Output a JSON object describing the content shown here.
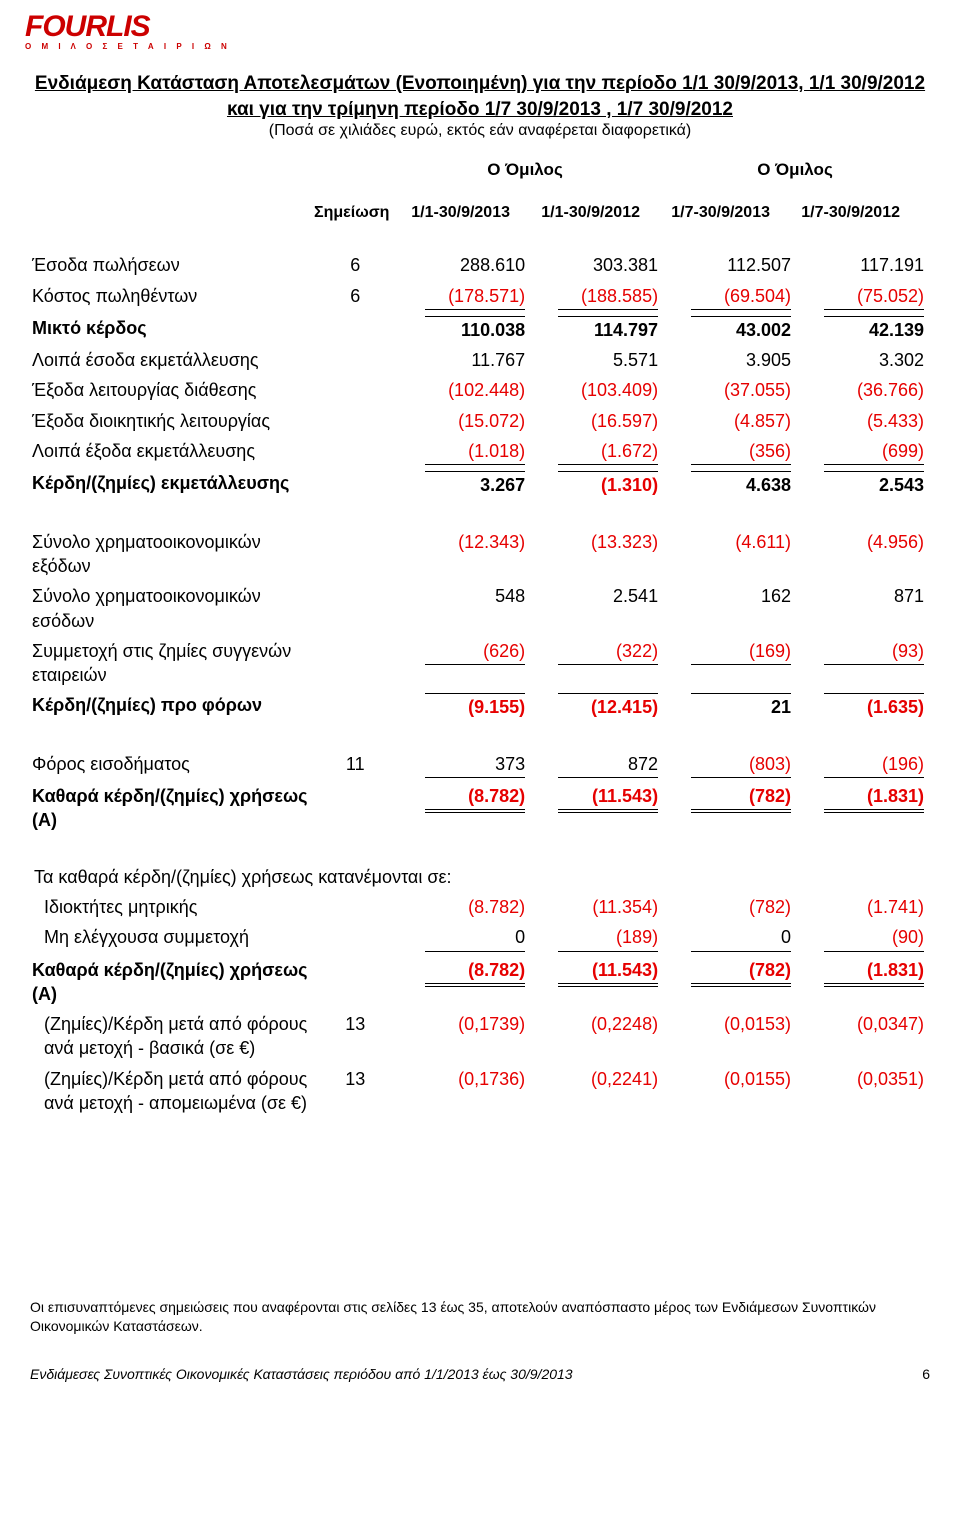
{
  "logo": {
    "main": "FOURLIS",
    "sub": "Ο Μ Ι Λ Ο Σ   Ε Τ Α Ι Ρ Ι Ω Ν"
  },
  "title": {
    "line1": "Ενδιάμεση Κατάσταση Αποτελεσμάτων (Ενοποιημένη) για την περίοδο 1/1 30/9/2013, 1/1 30/9/2012  και για την τρίμηνη περίοδο 1/7 30/9/2013 , 1/7 30/9/2012",
    "sub": "(Ποσά σε χιλιάδες ευρώ, εκτός εάν αναφέρεται διαφορετικά)"
  },
  "columns": {
    "note_header": "Σημείωση",
    "group_a": "Ο Όμιλος",
    "group_b": "Ο Όμιλος",
    "p1": "1/1-30/9/2013",
    "p2": "1/1-30/9/2012",
    "p3": "1/7-30/9/2013",
    "p4": "1/7-30/9/2012"
  },
  "rows": [
    {
      "label": "Έσοδα πωλήσεων",
      "note": "6",
      "vals": [
        "288.610",
        "303.381",
        "112.507",
        "117.191"
      ],
      "neg": [
        false,
        false,
        false,
        false
      ]
    },
    {
      "label": "Κόστος πωληθέντων",
      "note": "6",
      "vals": [
        "(178.571)",
        "(188.585)",
        "(69.504)",
        "(75.052)"
      ],
      "neg": [
        true,
        true,
        true,
        true
      ],
      "underline": true
    },
    {
      "label": "Μικτό κέρδος",
      "bold": true,
      "vals": [
        "110.038",
        "114.797",
        "43.002",
        "42.139"
      ],
      "neg": [
        false,
        false,
        false,
        false
      ],
      "topline": true
    },
    {
      "label": "Λοιπά έσοδα εκμετάλλευσης",
      "vals": [
        "11.767",
        "5.571",
        "3.905",
        "3.302"
      ],
      "neg": [
        false,
        false,
        false,
        false
      ]
    },
    {
      "label": "Έξοδα λειτουργίας διάθεσης",
      "vals": [
        "(102.448)",
        "(103.409)",
        "(37.055)",
        "(36.766)"
      ],
      "neg": [
        true,
        true,
        true,
        true
      ]
    },
    {
      "label": "Έξοδα διοικητικής λειτουργίας",
      "vals": [
        "(15.072)",
        "(16.597)",
        "(4.857)",
        "(5.433)"
      ],
      "neg": [
        true,
        true,
        true,
        true
      ]
    },
    {
      "label": "Λοιπά έξοδα εκμετάλλευσης",
      "vals": [
        "(1.018)",
        "(1.672)",
        "(356)",
        "(699)"
      ],
      "neg": [
        true,
        true,
        true,
        true
      ],
      "underline": true
    },
    {
      "label": "Κέρδη/(ζημίες) εκμετάλλευσης",
      "bold": true,
      "vals": [
        "3.267",
        "(1.310)",
        "4.638",
        "2.543"
      ],
      "neg": [
        false,
        true,
        false,
        false
      ],
      "topline": true
    }
  ],
  "rows2": [
    {
      "label": "Σύνολο χρηματοοικονομικών εξόδων",
      "vals": [
        "(12.343)",
        "(13.323)",
        "(4.611)",
        "(4.956)"
      ],
      "neg": [
        true,
        true,
        true,
        true
      ]
    },
    {
      "label": "Σύνολο χρηματοοικονομικών εσόδων",
      "vals": [
        "548",
        "2.541",
        "162",
        "871"
      ],
      "neg": [
        false,
        false,
        false,
        false
      ]
    },
    {
      "label": "Συμμετοχή στις ζημίες συγγενών εταιρειών",
      "vals": [
        "(626)",
        "(322)",
        "(169)",
        "(93)"
      ],
      "neg": [
        true,
        true,
        true,
        true
      ],
      "underline": true
    },
    {
      "label": "Κέρδη/(ζημίες) προ φόρων",
      "bold": true,
      "vals": [
        "(9.155)",
        "(12.415)",
        "21",
        "(1.635)"
      ],
      "neg": [
        true,
        true,
        false,
        true
      ],
      "topline": true
    }
  ],
  "rows3": [
    {
      "label": "Φόρος εισοδήματος",
      "note": "11",
      "vals": [
        "373",
        "872",
        "(803)",
        "(196)"
      ],
      "neg": [
        false,
        false,
        true,
        true
      ],
      "underline": true
    },
    {
      "label": "Καθαρά κέρδη/(ζημίες) χρήσεως (Α)",
      "bold": true,
      "vals": [
        "(8.782)",
        "(11.543)",
        "(782)",
        "(1.831)"
      ],
      "neg": [
        true,
        true,
        true,
        true
      ],
      "dbl": true
    }
  ],
  "alloc_header": "Τα καθαρά κέρδη/(ζημίες) χρήσεως κατανέμονται σε:",
  "rows4": [
    {
      "label": "Ιδιοκτήτες μητρικής",
      "indent": true,
      "vals": [
        "(8.782)",
        "(11.354)",
        "(782)",
        "(1.741)"
      ],
      "neg": [
        true,
        true,
        true,
        true
      ]
    },
    {
      "label": "Μη ελέγχουσα συμμετοχή",
      "indent": true,
      "vals": [
        "0",
        "(189)",
        "0",
        "(90)"
      ],
      "neg": [
        false,
        true,
        false,
        true
      ],
      "underline": true
    },
    {
      "label": "Καθαρά κέρδη/(ζημίες) χρήσεως (Α)",
      "bold": true,
      "vals": [
        "(8.782)",
        "(11.543)",
        "(782)",
        "(1.831)"
      ],
      "neg": [
        true,
        true,
        true,
        true
      ],
      "dbl": true
    },
    {
      "label": "(Ζημίες)/Κέρδη μετά από φόρους ανά μετοχή - βασικά (σε €)",
      "indent": true,
      "note": "13",
      "vals": [
        "(0,1739)",
        "(0,2248)",
        "(0,0153)",
        "(0,0347)"
      ],
      "neg": [
        true,
        true,
        true,
        true
      ]
    },
    {
      "label": "(Ζημίες)/Κέρδη μετά από φόρους ανά μετοχή - απομειωμένα (σε €)",
      "indent": true,
      "note": "13",
      "vals": [
        "(0,1736)",
        "(0,2241)",
        "(0,0155)",
        "(0,0351)"
      ],
      "neg": [
        true,
        true,
        true,
        true
      ]
    }
  ],
  "footnote": "Οι επισυναπτόμενες σημειώσεις που αναφέρονται στις σελίδες 13 έως 35, αποτελούν αναπόσπαστο μέρος των Ενδιάμεσων Συνοπτικών Οικονομικών Καταστάσεων.",
  "footer": {
    "left": "Ενδιάμεσες Συνοπτικές Οικονομικές Καταστάσεις περιόδου από 1/1/2013 έως 30/9/2013",
    "page": "6"
  }
}
